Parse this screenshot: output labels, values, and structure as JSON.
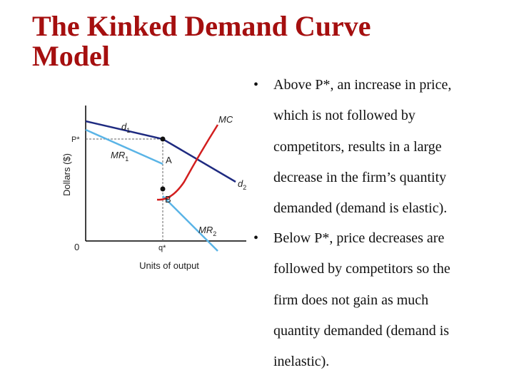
{
  "title": [
    "The Kinked Demand Curve",
    "Model"
  ],
  "bullets": [
    {
      "lines": [
        "Above P*, an increase in price,",
        "which is not followed by",
        "competitors, results in a large",
        "decrease in the firm’s quantity",
        "demanded (demand is elastic)."
      ]
    },
    {
      "lines": [
        "Below P*, price decreases are",
        "followed by competitors so the",
        "firm does not gain as much",
        "quantity demanded (demand is",
        "inelastic)."
      ]
    }
  ],
  "bullet_symbol": "•",
  "diagram": {
    "y_axis_label": "Dollars ($)",
    "x_axis_label": "Units of output",
    "origin": "0",
    "price_label": "P*",
    "quantity_label": "q*",
    "curves": [
      {
        "name": "d",
        "sub": "1"
      },
      {
        "name": "MR",
        "sub": "1"
      },
      {
        "name": "MC"
      },
      {
        "name": "d",
        "sub": "2"
      },
      {
        "name": "MR",
        "sub": "2"
      }
    ],
    "points": [
      "A",
      "B"
    ]
  }
}
